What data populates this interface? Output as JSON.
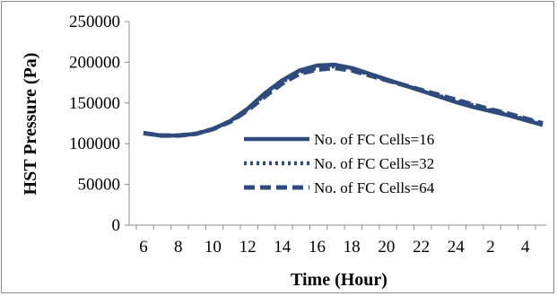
{
  "chart_data": {
    "type": "line",
    "title": "",
    "xlabel": "Time (Hour)",
    "ylabel": "HST Pressure (Pa)",
    "ylim": [
      0,
      250000
    ],
    "yticks": [
      "0",
      "50000",
      "100000",
      "150000",
      "200000",
      "250000"
    ],
    "x_tick_labels": [
      "6",
      "8",
      "10",
      "12",
      "14",
      "16",
      "18",
      "20",
      "22",
      "24",
      "2",
      "4"
    ],
    "x": [
      6,
      7,
      8,
      9,
      10,
      11,
      12,
      13,
      14,
      15,
      16,
      17,
      18,
      19,
      20,
      21,
      22,
      23,
      24,
      25,
      26,
      27,
      28,
      29
    ],
    "grid": false,
    "legend_position": "center-right",
    "series": [
      {
        "name": "No. of FC Cells=16",
        "style": "solid",
        "color": "#2f4b7c",
        "values": [
          113000,
          110000,
          110000,
          112000,
          118000,
          128000,
          143000,
          162000,
          178000,
          190000,
          196000,
          197000,
          193000,
          186000,
          179000,
          172000,
          165000,
          158000,
          151000,
          145000,
          140000,
          135000,
          129000,
          123000
        ]
      },
      {
        "name": "No. of FC Cells=32",
        "style": "dotted",
        "color": "#2f4b7c",
        "values": [
          113000,
          110000,
          110000,
          112000,
          118000,
          127000,
          142000,
          160000,
          176000,
          188000,
          193000,
          195000,
          192000,
          185000,
          178000,
          172000,
          165000,
          159000,
          153000,
          147000,
          141000,
          136000,
          130000,
          124000
        ]
      },
      {
        "name": "No. of FC Cells=64",
        "style": "dashed",
        "color": "#2f4b7c",
        "values": [
          113000,
          110000,
          110000,
          112000,
          118000,
          127000,
          141000,
          158000,
          174000,
          186000,
          191000,
          193000,
          190000,
          184000,
          178000,
          172000,
          166000,
          160000,
          154000,
          148000,
          142000,
          137000,
          131000,
          125000
        ]
      }
    ]
  }
}
